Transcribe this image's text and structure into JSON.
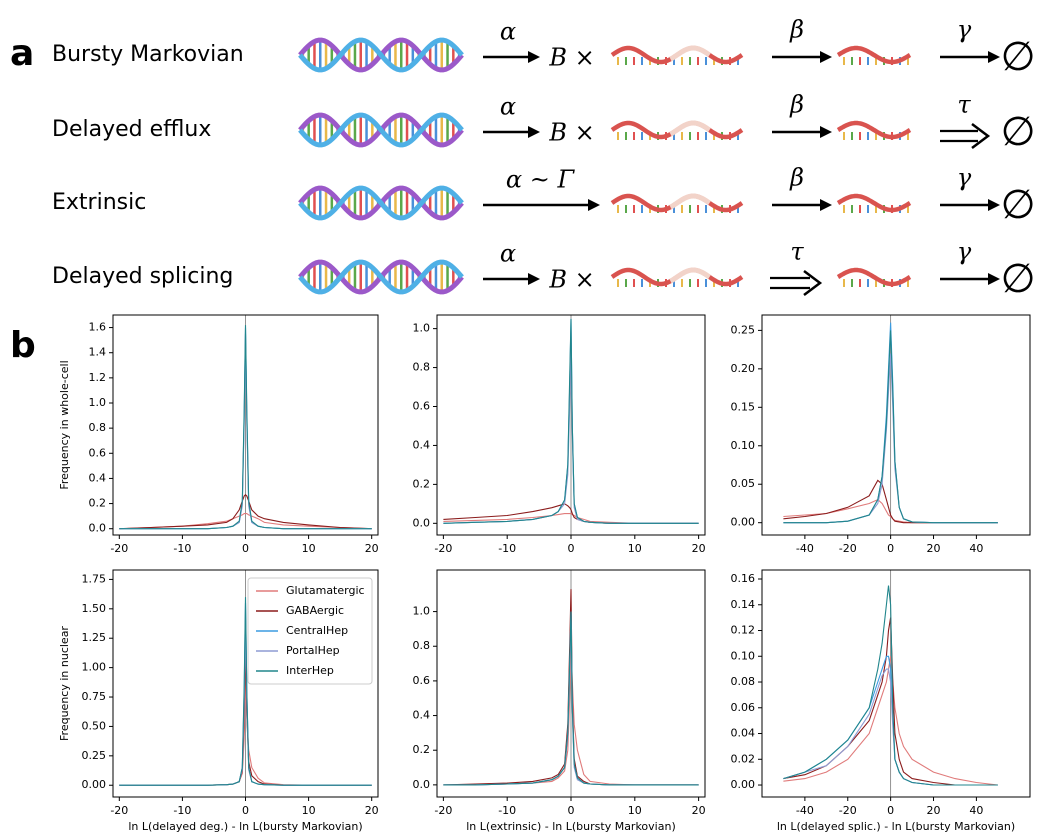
{
  "panel_a": {
    "label": "a",
    "rows": [
      {
        "name": "Bursty Markovian",
        "rate1": "α",
        "burst": "B ×",
        "rate2": "β",
        "rate3": "γ",
        "sink": "∅"
      },
      {
        "name": "Delayed efflux",
        "rate1": "α",
        "burst": "B ×",
        "rate2": "β",
        "rate3": "τ",
        "sink": "∅"
      },
      {
        "name": "Extrinsic",
        "rate1": "α ~ Γ",
        "rate2": "β",
        "rate3": "γ",
        "sink": "∅"
      },
      {
        "name": "Delayed splicing",
        "rate1": "α",
        "burst": "B ×",
        "rate2": "τ",
        "rate3": "γ",
        "sink": "∅"
      }
    ]
  },
  "panel_b_label": "b",
  "chart_data": [
    {
      "type": "line",
      "y_label": "Frequency in whole-cell",
      "xlim": [
        -21,
        21
      ],
      "ylim": [
        -0.05,
        1.7
      ],
      "vline": 0,
      "xticks": [
        -20,
        -10,
        0,
        10,
        20
      ],
      "yticks": [
        {
          "value": 0,
          "label": "0.0"
        },
        {
          "value": 0.2,
          "label": "0.2"
        },
        {
          "value": 0.4,
          "label": "0.4"
        },
        {
          "value": 0.6,
          "label": "0.6"
        },
        {
          "value": 0.8,
          "label": "0.8"
        },
        {
          "value": 1.0,
          "label": "1.0"
        },
        {
          "value": 1.2,
          "label": "1.2"
        },
        {
          "value": 1.4,
          "label": "1.4"
        },
        {
          "value": 1.6,
          "label": "1.6"
        }
      ],
      "x": [
        -20,
        -15,
        -10,
        -6,
        -3,
        -2,
        -1,
        -0.5,
        -0.2,
        0,
        0.2,
        0.5,
        1,
        2,
        3,
        6,
        10,
        15,
        20
      ],
      "series": [
        {
          "color": "#e07b7b",
          "values": [
            0,
            0.01,
            0.02,
            0.04,
            0.06,
            0.08,
            0.1,
            0.11,
            0.12,
            0.12,
            0.12,
            0.11,
            0.1,
            0.08,
            0.05,
            0.03,
            0.02,
            0.01,
            0
          ]
        },
        {
          "color": "#8b1c1c",
          "values": [
            0,
            0.01,
            0.02,
            0.03,
            0.05,
            0.08,
            0.15,
            0.22,
            0.26,
            0.27,
            0.26,
            0.22,
            0.15,
            0.1,
            0.08,
            0.05,
            0.03,
            0.01,
            0
          ]
        },
        {
          "color": "#3b9be0",
          "values": [
            0,
            0,
            0,
            0,
            0.01,
            0.02,
            0.05,
            0.2,
            0.9,
            1.6,
            0.9,
            0.2,
            0.05,
            0.02,
            0.01,
            0,
            0,
            0,
            0
          ]
        },
        {
          "color": "#8e9cd4",
          "values": [
            0,
            0,
            0,
            0,
            0.01,
            0.02,
            0.05,
            0.18,
            0.85,
            1.55,
            0.85,
            0.18,
            0.05,
            0.02,
            0.01,
            0,
            0,
            0,
            0
          ]
        },
        {
          "color": "#21868c",
          "values": [
            0,
            0,
            0,
            0,
            0.01,
            0.02,
            0.06,
            0.22,
            0.95,
            1.62,
            0.95,
            0.22,
            0.06,
            0.02,
            0.01,
            0,
            0,
            0,
            0
          ]
        }
      ]
    },
    {
      "type": "line",
      "xlim": [
        -21,
        21
      ],
      "ylim": [
        -0.06,
        1.07
      ],
      "vline": 0,
      "xticks": [
        -20,
        -10,
        0,
        10,
        20
      ],
      "yticks": [
        {
          "value": 0,
          "label": "0.0"
        },
        {
          "value": 0.2,
          "label": "0.2"
        },
        {
          "value": 0.4,
          "label": "0.4"
        },
        {
          "value": 0.6,
          "label": "0.6"
        },
        {
          "value": 0.8,
          "label": "0.8"
        },
        {
          "value": 1.0,
          "label": "1.0"
        }
      ],
      "x": [
        -20,
        -15,
        -10,
        -6,
        -3,
        -2,
        -1,
        -0.5,
        -0.2,
        0,
        0.2,
        0.5,
        1,
        2,
        3,
        6,
        10,
        15,
        20
      ],
      "series": [
        {
          "color": "#e07b7b",
          "values": [
            0.01,
            0.015,
            0.02,
            0.03,
            0.04,
            0.045,
            0.05,
            0.05,
            0.05,
            0.05,
            0.045,
            0.04,
            0.03,
            0.02,
            0.01,
            0.005,
            0,
            0,
            0
          ]
        },
        {
          "color": "#8b1c1c",
          "values": [
            0.02,
            0.03,
            0.04,
            0.06,
            0.08,
            0.09,
            0.1,
            0.09,
            0.08,
            0.07,
            0.05,
            0.03,
            0.02,
            0.01,
            0.005,
            0,
            0,
            0,
            0
          ]
        },
        {
          "color": "#3b9be0",
          "values": [
            0,
            0.005,
            0.01,
            0.02,
            0.04,
            0.06,
            0.12,
            0.3,
            0.7,
            1.05,
            0.5,
            0.1,
            0.03,
            0.01,
            0.005,
            0,
            0,
            0,
            0
          ]
        },
        {
          "color": "#8e9cd4",
          "values": [
            0,
            0.005,
            0.01,
            0.02,
            0.04,
            0.06,
            0.1,
            0.25,
            0.6,
            0.95,
            0.45,
            0.08,
            0.02,
            0.01,
            0.005,
            0,
            0,
            0,
            0
          ]
        },
        {
          "color": "#21868c",
          "values": [
            0,
            0.005,
            0.01,
            0.02,
            0.04,
            0.06,
            0.12,
            0.3,
            0.75,
            1.05,
            0.5,
            0.1,
            0.03,
            0.01,
            0.005,
            0,
            0,
            0,
            0
          ]
        }
      ]
    },
    {
      "type": "line",
      "xlim": [
        -60,
        65
      ],
      "ylim": [
        -0.016,
        0.27
      ],
      "vline": 0,
      "xticks": [
        -40,
        -20,
        0,
        20,
        40
      ],
      "yticks": [
        {
          "value": 0,
          "label": "0.00"
        },
        {
          "value": 0.05,
          "label": "0.05"
        },
        {
          "value": 0.1,
          "label": "0.10"
        },
        {
          "value": 0.15,
          "label": "0.15"
        },
        {
          "value": 0.2,
          "label": "0.20"
        },
        {
          "value": 0.25,
          "label": "0.25"
        }
      ],
      "x": [
        -50,
        -40,
        -30,
        -20,
        -10,
        -6,
        -4,
        -2,
        -1,
        0,
        1,
        2,
        4,
        6,
        10,
        20,
        30,
        40,
        50
      ],
      "series": [
        {
          "color": "#e07b7b",
          "values": [
            0.008,
            0.01,
            0.012,
            0.018,
            0.025,
            0.03,
            0.025,
            0.015,
            0.01,
            0.008,
            0.005,
            0.003,
            0.002,
            0.001,
            0,
            0,
            0,
            0,
            0
          ]
        },
        {
          "color": "#8b1c1c",
          "values": [
            0.005,
            0.008,
            0.012,
            0.02,
            0.035,
            0.055,
            0.05,
            0.03,
            0.02,
            0.01,
            0.005,
            0.002,
            0.001,
            0,
            0,
            0,
            0,
            0,
            0
          ]
        },
        {
          "color": "#3b9be0",
          "values": [
            0,
            0,
            0,
            0.002,
            0.01,
            0.03,
            0.06,
            0.14,
            0.2,
            0.26,
            0.18,
            0.08,
            0.02,
            0.005,
            0.001,
            0,
            0,
            0,
            0
          ]
        },
        {
          "color": "#8e9cd4",
          "values": [
            0,
            0,
            0,
            0.002,
            0.01,
            0.025,
            0.05,
            0.12,
            0.17,
            0.22,
            0.15,
            0.07,
            0.02,
            0.005,
            0.001,
            0,
            0,
            0,
            0
          ]
        },
        {
          "color": "#21868c",
          "values": [
            0,
            0,
            0,
            0.002,
            0.01,
            0.03,
            0.06,
            0.13,
            0.19,
            0.25,
            0.17,
            0.08,
            0.02,
            0.005,
            0.001,
            0,
            0,
            0,
            0
          ]
        }
      ]
    },
    {
      "type": "line",
      "y_label": "Frequency in nuclear",
      "x_label": "ln L(delayed deg.) - ln L(bursty Markovian)",
      "legend": "upper right",
      "xlim": [
        -21,
        21
      ],
      "ylim": [
        -0.1,
        1.83
      ],
      "vline": 0,
      "xticks": [
        -20,
        -10,
        0,
        10,
        20
      ],
      "yticks": [
        {
          "value": 0,
          "label": "0.00"
        },
        {
          "value": 0.25,
          "label": "0.25"
        },
        {
          "value": 0.5,
          "label": "0.50"
        },
        {
          "value": 0.75,
          "label": "0.75"
        },
        {
          "value": 1.0,
          "label": "1.00"
        },
        {
          "value": 1.25,
          "label": "1.25"
        },
        {
          "value": 1.5,
          "label": "1.50"
        },
        {
          "value": 1.75,
          "label": "1.75"
        }
      ],
      "x": [
        -20,
        -15,
        -10,
        -6,
        -3,
        -2,
        -1,
        -0.5,
        -0.2,
        0,
        0.2,
        0.5,
        1,
        2,
        3,
        6,
        10,
        15,
        20
      ],
      "series": [
        {
          "name": "Glutamatergic",
          "color": "#e07b7b",
          "values": [
            0,
            0,
            0,
            0,
            0.005,
            0.01,
            0.03,
            0.1,
            0.4,
            0.85,
            0.6,
            0.3,
            0.15,
            0.06,
            0.02,
            0.005,
            0,
            0,
            0
          ]
        },
        {
          "name": "GABAergic",
          "color": "#8b1c1c",
          "values": [
            0,
            0,
            0,
            0,
            0.005,
            0.01,
            0.03,
            0.12,
            0.6,
            1.2,
            0.6,
            0.2,
            0.08,
            0.03,
            0.01,
            0,
            0,
            0,
            0
          ]
        },
        {
          "name": "CentralHep",
          "color": "#3b9be0",
          "values": [
            0,
            0,
            0,
            0,
            0.005,
            0.01,
            0.03,
            0.15,
            0.8,
            1.55,
            0.8,
            0.15,
            0.03,
            0.01,
            0.005,
            0,
            0,
            0,
            0
          ]
        },
        {
          "name": "PortalHep",
          "color": "#8e9cd4",
          "values": [
            0,
            0,
            0,
            0,
            0.005,
            0.01,
            0.03,
            0.13,
            0.7,
            1.4,
            0.7,
            0.13,
            0.03,
            0.01,
            0.005,
            0,
            0,
            0,
            0
          ]
        },
        {
          "name": "InterHep",
          "color": "#21868c",
          "values": [
            0,
            0,
            0,
            0,
            0.005,
            0.01,
            0.03,
            0.15,
            0.85,
            1.6,
            0.8,
            0.15,
            0.03,
            0.01,
            0.005,
            0,
            0,
            0,
            0
          ]
        }
      ]
    },
    {
      "type": "line",
      "x_label": "ln L(extrinsic) - ln L(bursty Markovian)",
      "xlim": [
        -21,
        21
      ],
      "ylim": [
        -0.07,
        1.24
      ],
      "vline": 0,
      "xticks": [
        -20,
        -10,
        0,
        10,
        20
      ],
      "yticks": [
        {
          "value": 0,
          "label": "0.0"
        },
        {
          "value": 0.2,
          "label": "0.2"
        },
        {
          "value": 0.4,
          "label": "0.4"
        },
        {
          "value": 0.6,
          "label": "0.6"
        },
        {
          "value": 0.8,
          "label": "0.8"
        },
        {
          "value": 1.0,
          "label": "1.0"
        }
      ],
      "x": [
        -20,
        -15,
        -10,
        -6,
        -3,
        -2,
        -1,
        -0.5,
        -0.2,
        0,
        0.2,
        0.5,
        1,
        2,
        3,
        6,
        10,
        15,
        20
      ],
      "series": [
        {
          "color": "#e07b7b",
          "values": [
            0,
            0,
            0.005,
            0.01,
            0.02,
            0.04,
            0.08,
            0.2,
            0.5,
            0.8,
            0.6,
            0.35,
            0.2,
            0.06,
            0.02,
            0.005,
            0,
            0,
            0
          ]
        },
        {
          "color": "#8b1c1c",
          "values": [
            0,
            0.005,
            0.01,
            0.02,
            0.04,
            0.06,
            0.12,
            0.35,
            0.8,
            1.13,
            0.5,
            0.15,
            0.05,
            0.02,
            0.005,
            0,
            0,
            0,
            0
          ]
        },
        {
          "color": "#3b9be0",
          "values": [
            0,
            0,
            0.005,
            0.01,
            0.03,
            0.05,
            0.1,
            0.3,
            0.7,
            1.0,
            0.45,
            0.12,
            0.04,
            0.01,
            0.005,
            0,
            0,
            0,
            0
          ]
        },
        {
          "color": "#8e9cd4",
          "values": [
            0,
            0,
            0.005,
            0.01,
            0.03,
            0.05,
            0.1,
            0.28,
            0.65,
            0.95,
            0.42,
            0.1,
            0.03,
            0.01,
            0.005,
            0,
            0,
            0,
            0
          ]
        },
        {
          "color": "#21868c",
          "values": [
            0,
            0,
            0.005,
            0.01,
            0.03,
            0.05,
            0.1,
            0.3,
            0.7,
            1.0,
            0.45,
            0.12,
            0.04,
            0.01,
            0.005,
            0,
            0,
            0,
            0
          ]
        }
      ]
    },
    {
      "type": "line",
      "x_label": "ln L(delayed splic.) - ln L(bursty Markovian)",
      "xlim": [
        -60,
        65
      ],
      "ylim": [
        -0.0093,
        0.167
      ],
      "vline": 0,
      "xticks": [
        -40,
        -20,
        0,
        20,
        40
      ],
      "yticks": [
        {
          "value": 0,
          "label": "0.00"
        },
        {
          "value": 0.02,
          "label": "0.02"
        },
        {
          "value": 0.04,
          "label": "0.04"
        },
        {
          "value": 0.06,
          "label": "0.06"
        },
        {
          "value": 0.08,
          "label": "0.08"
        },
        {
          "value": 0.1,
          "label": "0.10"
        },
        {
          "value": 0.12,
          "label": "0.12"
        },
        {
          "value": 0.14,
          "label": "0.14"
        },
        {
          "value": 0.16,
          "label": "0.16"
        }
      ],
      "x": [
        -50,
        -40,
        -30,
        -20,
        -10,
        -6,
        -4,
        -2,
        -1,
        0,
        1,
        2,
        4,
        6,
        10,
        20,
        30,
        40,
        50
      ],
      "series": [
        {
          "color": "#e07b7b",
          "values": [
            0.003,
            0.005,
            0.01,
            0.02,
            0.04,
            0.06,
            0.07,
            0.08,
            0.09,
            0.1,
            0.08,
            0.06,
            0.04,
            0.03,
            0.02,
            0.01,
            0.005,
            0.002,
            0
          ]
        },
        {
          "color": "#8b1c1c",
          "values": [
            0.005,
            0.008,
            0.015,
            0.03,
            0.05,
            0.07,
            0.08,
            0.1,
            0.12,
            0.13,
            0.08,
            0.04,
            0.02,
            0.01,
            0.005,
            0.002,
            0,
            0,
            0
          ]
        },
        {
          "color": "#3b9be0",
          "values": [
            0.005,
            0.01,
            0.02,
            0.035,
            0.06,
            0.08,
            0.09,
            0.1,
            0.1,
            0.09,
            0.05,
            0.02,
            0.01,
            0.005,
            0.002,
            0,
            0,
            0,
            0
          ]
        },
        {
          "color": "#8e9cd4",
          "values": [
            0.005,
            0.01,
            0.015,
            0.03,
            0.055,
            0.075,
            0.085,
            0.09,
            0.09,
            0.08,
            0.045,
            0.02,
            0.01,
            0.005,
            0.002,
            0,
            0,
            0,
            0
          ]
        },
        {
          "color": "#21868c",
          "values": [
            0.005,
            0.01,
            0.02,
            0.035,
            0.06,
            0.09,
            0.11,
            0.14,
            0.155,
            0.14,
            0.06,
            0.02,
            0.01,
            0.005,
            0.002,
            0,
            0,
            0,
            0
          ]
        }
      ]
    }
  ]
}
